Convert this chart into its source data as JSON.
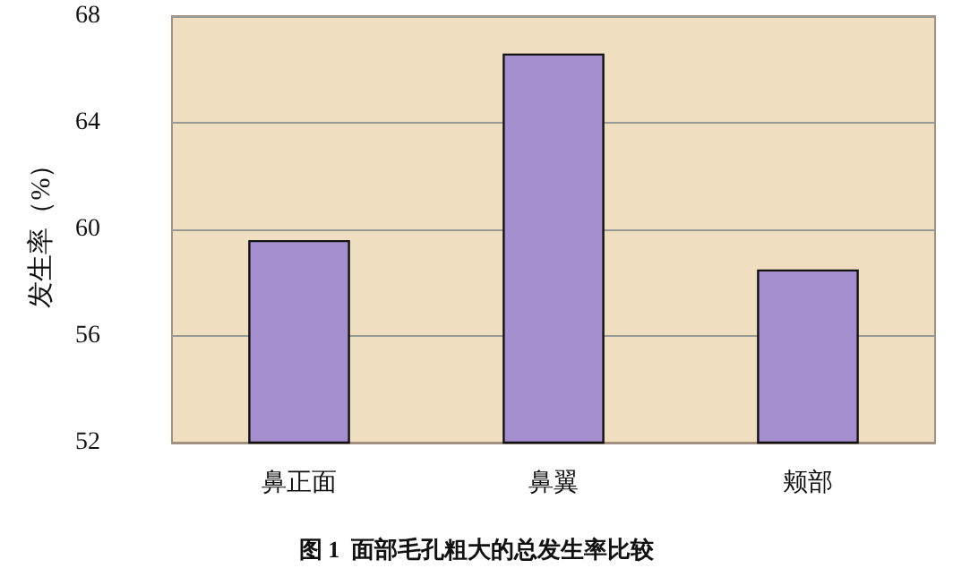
{
  "chart_data": {
    "type": "bar",
    "title": "图 1  面部毛孔粗大的总发生率比较",
    "ylabel": "发生率（%）",
    "categories": [
      "鼻正面",
      "鼻翼",
      "颊部"
    ],
    "values": [
      59.6,
      66.6,
      58.5
    ],
    "color": "#a48fcf",
    "ylim": [
      52,
      68
    ],
    "yticks": [
      52,
      56,
      60,
      64,
      68
    ],
    "grid": "y"
  }
}
